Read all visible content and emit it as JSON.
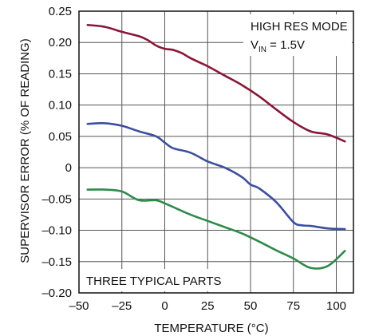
{
  "chart_data": {
    "type": "line",
    "xlabel": "TEMPERATURE (°C)",
    "ylabel": "SUPERVISOR ERROR (% OF READING)",
    "xlim": [
      -50,
      110
    ],
    "ylim": [
      -0.2,
      0.25
    ],
    "x_ticks": [
      -50,
      -25,
      0,
      25,
      50,
      75,
      100
    ],
    "x_tick_labels": [
      "–50",
      "–25",
      "0",
      "25",
      "50",
      "75",
      "100"
    ],
    "y_ticks": [
      0.25,
      0.2,
      0.15,
      0.1,
      0.05,
      0,
      -0.05,
      -0.1,
      -0.15,
      -0.2
    ],
    "y_tick_labels": [
      "0.25",
      "0.20",
      "0.15",
      "0.10",
      "0.05",
      "0",
      "–0.05",
      "–0.10",
      "–0.15",
      "–0.20"
    ],
    "grid": true,
    "annotations": {
      "mode": "HIGH RES MODE",
      "vin_main": "V",
      "vin_sub": "IN",
      "vin_value": " = 1.5V",
      "parts": "THREE TYPICAL PARTS"
    },
    "series": [
      {
        "color": "#8b1538",
        "x": [
          -45,
          -35,
          -25,
          -15,
          -10,
          -5,
          0,
          5,
          10,
          15,
          25,
          35,
          45,
          55,
          65,
          75,
          85,
          95,
          105
        ],
        "y": [
          0.228,
          0.225,
          0.217,
          0.21,
          0.204,
          0.195,
          0.19,
          0.188,
          0.183,
          0.175,
          0.162,
          0.147,
          0.132,
          0.114,
          0.093,
          0.073,
          0.058,
          0.053,
          0.042
        ]
      },
      {
        "color": "#3b4fa0",
        "x": [
          -45,
          -35,
          -25,
          -15,
          -5,
          0,
          5,
          15,
          25,
          35,
          45,
          50,
          55,
          65,
          75,
          80,
          85,
          95,
          105
        ],
        "y": [
          0.07,
          0.071,
          0.067,
          0.058,
          0.05,
          0.04,
          0.031,
          0.024,
          0.01,
          0.0,
          -0.015,
          -0.027,
          -0.033,
          -0.055,
          -0.087,
          -0.092,
          -0.093,
          -0.097,
          -0.098
        ]
      },
      {
        "color": "#2e8b4a",
        "x": [
          -45,
          -35,
          -25,
          -15,
          -5,
          0,
          5,
          15,
          25,
          35,
          45,
          55,
          65,
          75,
          85,
          95,
          105
        ],
        "y": [
          -0.035,
          -0.035,
          -0.038,
          -0.052,
          -0.052,
          -0.057,
          -0.063,
          -0.075,
          -0.085,
          -0.095,
          -0.105,
          -0.118,
          -0.132,
          -0.145,
          -0.16,
          -0.157,
          -0.133
        ]
      }
    ]
  }
}
